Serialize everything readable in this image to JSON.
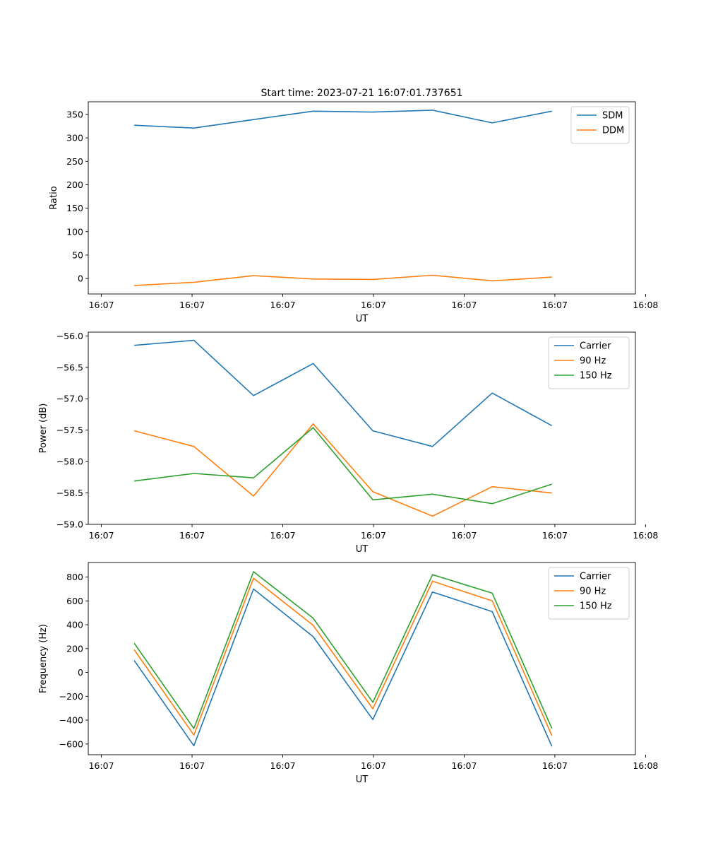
{
  "figure_title": "Start time: 2023-07-21 16:07:01.737651",
  "colors": {
    "c0": "#1f77b4",
    "c1": "#ff7f0e",
    "c2": "#2ca02c"
  },
  "chart_data": [
    {
      "type": "line",
      "title": "Start time: 2023-07-21 16:07:01.737651",
      "xlabel": "UT",
      "ylabel": "Ratio",
      "x": [
        1,
        2,
        3,
        4,
        5,
        6,
        7,
        8
      ],
      "xlim": [
        0.23,
        9.4
      ],
      "x_ticks": [
        0.45,
        1.97,
        3.49,
        5.01,
        6.53,
        8.05,
        9.57
      ],
      "x_tick_labels": [
        "16:07",
        "16:07",
        "16:07",
        "16:07",
        "16:07",
        "16:07",
        "16:08"
      ],
      "ylim": [
        -33,
        377
      ],
      "y_ticks": [
        0,
        50,
        100,
        150,
        200,
        250,
        300,
        350
      ],
      "y_tick_labels": [
        "0",
        "50",
        "100",
        "150",
        "200",
        "250",
        "300",
        "350"
      ],
      "legend_position": "top-right",
      "series": [
        {
          "name": "SDM",
          "color": "#1f77b4",
          "values": [
            327,
            321,
            339,
            357,
            355,
            359,
            332,
            357
          ]
        },
        {
          "name": "DDM",
          "color": "#ff7f0e",
          "values": [
            -15,
            -8,
            6,
            -1,
            -2,
            7,
            -5,
            3
          ]
        }
      ]
    },
    {
      "type": "line",
      "title": "",
      "xlabel": "UT",
      "ylabel": "Power (dB)",
      "x": [
        1,
        2,
        3,
        4,
        5,
        6,
        7,
        8
      ],
      "xlim": [
        0.23,
        9.4
      ],
      "x_ticks": [
        0.45,
        1.97,
        3.49,
        5.01,
        6.53,
        8.05,
        9.57
      ],
      "x_tick_labels": [
        "16:07",
        "16:07",
        "16:07",
        "16:07",
        "16:07",
        "16:07",
        "16:08"
      ],
      "ylim": [
        -59.0,
        -55.94
      ],
      "y_ticks": [
        -59.0,
        -58.5,
        -58.0,
        -57.5,
        -57.0,
        -56.5,
        -56.0
      ],
      "y_tick_labels": [
        "−59.0",
        "−58.5",
        "−58.0",
        "−57.5",
        "−57.0",
        "−56.5",
        "−56.0"
      ],
      "legend_position": "top-right",
      "series": [
        {
          "name": "Carrier",
          "color": "#1f77b4",
          "values": [
            -56.15,
            -56.07,
            -56.95,
            -56.44,
            -57.51,
            -57.76,
            -56.91,
            -57.43
          ]
        },
        {
          "name": "90 Hz",
          "color": "#ff7f0e",
          "values": [
            -57.51,
            -57.76,
            -58.55,
            -57.4,
            -58.48,
            -58.87,
            -58.4,
            -58.5
          ]
        },
        {
          "name": "150 Hz",
          "color": "#2ca02c",
          "values": [
            -58.31,
            -58.19,
            -58.26,
            -57.46,
            -58.61,
            -58.52,
            -58.67,
            -58.36
          ]
        }
      ]
    },
    {
      "type": "line",
      "title": "",
      "xlabel": "UT",
      "ylabel": "Frequency (Hz)",
      "x": [
        1,
        2,
        3,
        4,
        5,
        6,
        7,
        8
      ],
      "xlim": [
        0.23,
        9.4
      ],
      "x_ticks": [
        0.45,
        1.97,
        3.49,
        5.01,
        6.53,
        8.05,
        9.57
      ],
      "x_tick_labels": [
        "16:07",
        "16:07",
        "16:07",
        "16:07",
        "16:07",
        "16:07",
        "16:08"
      ],
      "ylim": [
        -690,
        922
      ],
      "y_ticks": [
        -600,
        -400,
        -200,
        0,
        200,
        400,
        600,
        800
      ],
      "y_tick_labels": [
        "−600",
        "−400",
        "−200",
        "0",
        "200",
        "400",
        "600",
        "800"
      ],
      "legend_position": "top-right",
      "series": [
        {
          "name": "Carrier",
          "color": "#1f77b4",
          "values": [
            100,
            -615,
            700,
            300,
            -395,
            675,
            510,
            -620
          ]
        },
        {
          "name": "90 Hz",
          "color": "#ff7f0e",
          "values": [
            190,
            -525,
            790,
            395,
            -305,
            765,
            600,
            -530
          ]
        },
        {
          "name": "150 Hz",
          "color": "#2ca02c",
          "values": [
            245,
            -470,
            845,
            455,
            -250,
            820,
            665,
            -470
          ]
        }
      ]
    }
  ]
}
